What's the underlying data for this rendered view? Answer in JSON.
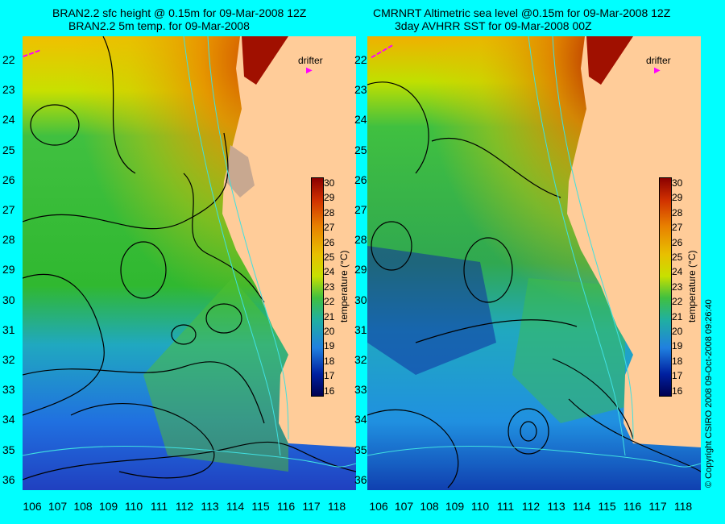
{
  "left_panel": {
    "title_line1": "BRAN2.2 sfc height @ 0.15m for 09-Mar-2008 12Z",
    "title_line2": "BRAN2.2 5m temp. for 09-Mar-2008",
    "drifter_label": "drifter"
  },
  "right_panel": {
    "title_line1": "CMRNRT Altimetric sea level  @0.15m  for 09-Mar-2008 12Z",
    "title_line2": "3day AVHRR SST for 09-Mar-2008 00Z",
    "drifter_label": "drifter"
  },
  "lat_labels": [
    "22",
    "23",
    "24",
    "25",
    "26",
    "27",
    "28",
    "29",
    "30",
    "31",
    "32",
    "33",
    "34",
    "35",
    "36"
  ],
  "lon_labels": [
    "106",
    "107",
    "108",
    "109",
    "110",
    "111",
    "112",
    "113",
    "114",
    "115",
    "116",
    "117",
    "118"
  ],
  "colorbar": {
    "title": "temperature (°C)",
    "labels": [
      "30",
      "29",
      "28",
      "27",
      "26",
      "25",
      "24",
      "23",
      "22",
      "21",
      "20",
      "19",
      "18",
      "17",
      "16"
    ]
  },
  "copyright": "© Copyright CSIRO 2008    09-Oct-2008 09:26:40",
  "colors": {
    "background": "#00ffff",
    "land": "#ffcc99",
    "contour": "#000000",
    "isobath": "#40e0e0",
    "drifter": "#ff00ff"
  }
}
